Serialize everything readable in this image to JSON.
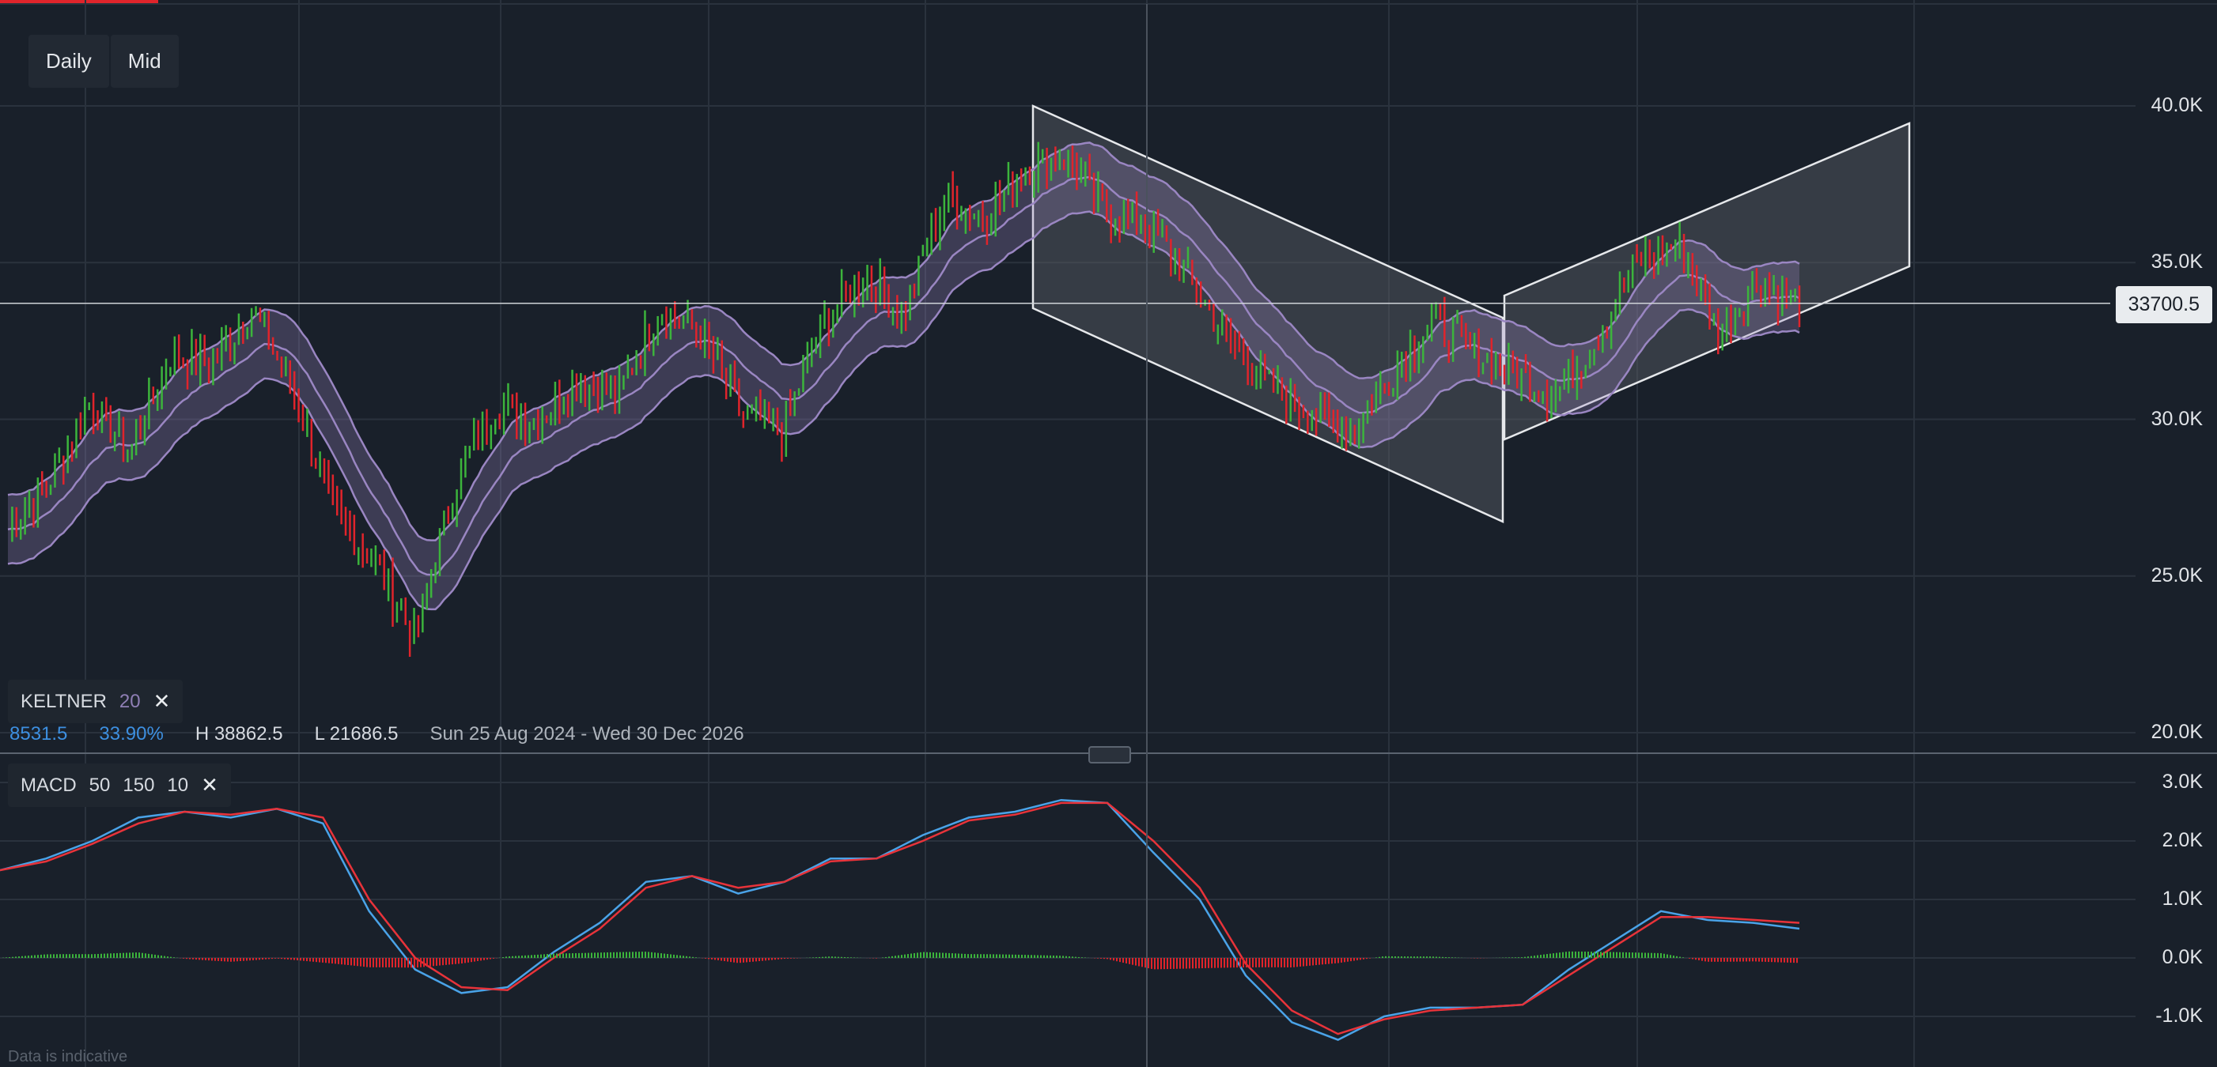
{
  "toolbar": {
    "period": "Daily",
    "price_type": "Mid"
  },
  "keltner": {
    "label": "KELTNER",
    "period": "20"
  },
  "stats": {
    "change": "8531.5",
    "change_pct": "33.90%",
    "high": "H 38862.5",
    "low": "L 21686.5",
    "range": "Sun 25 Aug 2024 - Wed 30 Dec 2026"
  },
  "macd_legend": {
    "label": "MACD",
    "fast": "50",
    "slow": "150",
    "signal": "10"
  },
  "current_price": "33700.5",
  "footnote": "Data is indicative",
  "colors": {
    "background": "#19202a",
    "up": "#3cb43c",
    "down": "#e0242b",
    "keltner": "#9a86c2",
    "macd_line": "#4aa3e8",
    "signal_line": "#e8333a",
    "channel_fill": "#5a5f66"
  },
  "chart_data": [
    {
      "type": "candlestick",
      "title": "",
      "indicator": "Keltner 20",
      "y_ticks": [
        "40.0K",
        "35.0K",
        "30.0K",
        "25.0K",
        "20.0K"
      ],
      "y_tick_values": [
        40000,
        35000,
        30000,
        25000,
        20000
      ],
      "ylim": [
        20000,
        41500
      ],
      "grid": true,
      "current_price": 33700.5,
      "high": 38862.5,
      "low": 21686.5,
      "x_range": [
        "Sun 25 Aug 2024",
        "Wed 30 Dec 2026"
      ],
      "close_path": [
        26500,
        28000,
        30500,
        29000,
        32000,
        31800,
        33500,
        31000,
        27000,
        25500,
        23000,
        28000,
        30500,
        30000,
        31200,
        30800,
        33500,
        32800,
        30200,
        29600,
        33000,
        34600,
        33400,
        37000,
        36500,
        38000,
        38400,
        36500,
        36200,
        34500,
        32500,
        31000,
        30200,
        29600,
        31500,
        33200,
        32200,
        31500,
        30800,
        32500,
        35000,
        35600,
        32800,
        34400,
        33700
      ]
    },
    {
      "type": "line",
      "title": "",
      "indicator": "MACD 50 150 10",
      "y_ticks": [
        "3.0K",
        "2.0K",
        "1.0K",
        "0.0K",
        "-1.0K"
      ],
      "y_tick_values": [
        3000,
        2000,
        1000,
        0,
        -1000
      ],
      "ylim": [
        -1400,
        3200
      ],
      "series": [
        {
          "name": "MACD",
          "values": [
            1500,
            1700,
            2000,
            2400,
            2500,
            2400,
            2550,
            2300,
            800,
            -200,
            -600,
            -500,
            100,
            600,
            1300,
            1400,
            1100,
            1300,
            1700,
            1700,
            2100,
            2400,
            2500,
            2700,
            2650,
            1800,
            1000,
            -300,
            -1100,
            -1400,
            -1000,
            -850,
            -850,
            -800,
            -200,
            300,
            800,
            650,
            600,
            500
          ]
        },
        {
          "name": "Signal",
          "values": [
            1500,
            1650,
            1950,
            2300,
            2500,
            2450,
            2550,
            2400,
            1000,
            0,
            -500,
            -550,
            0,
            500,
            1200,
            1400,
            1200,
            1300,
            1650,
            1700,
            2000,
            2350,
            2450,
            2650,
            2650,
            2000,
            1200,
            -100,
            -900,
            -1300,
            -1050,
            -900,
            -850,
            -800,
            -300,
            200,
            700,
            700,
            650,
            600
          ]
        }
      ]
    }
  ]
}
